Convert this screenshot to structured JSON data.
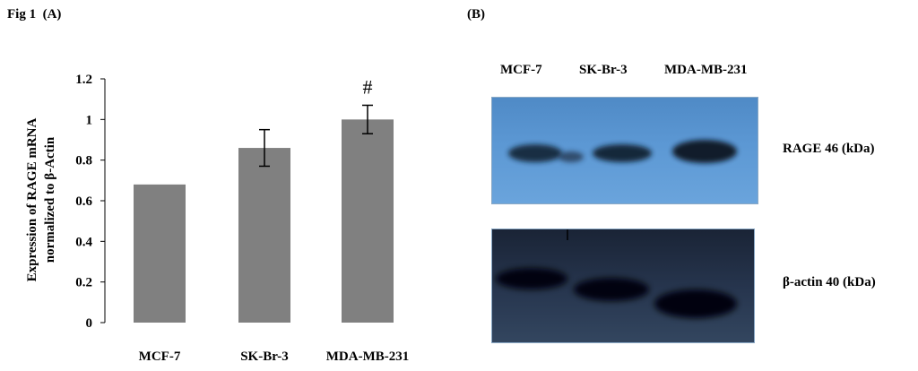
{
  "figure": {
    "title": "Fig 1  (A)",
    "panel_b_label": "(B)"
  },
  "chart_data": {
    "type": "bar",
    "categories": [
      "MCF-7",
      "SK-Br-3",
      "MDA-MB-231"
    ],
    "values": [
      0.68,
      0.86,
      1.0
    ],
    "errors": [
      0,
      0.09,
      0.07
    ],
    "annotations": [
      {
        "category": "MDA-MB-231",
        "text": "#"
      }
    ],
    "ylabel_line1": "Expression of RAGE mRNA",
    "ylabel_line2": "normalized to β-Actin",
    "ylim": [
      0,
      1.2
    ],
    "yticks": [
      "0",
      "0.2",
      "0.4",
      "0.6",
      "0.8",
      "1",
      "1.2"
    ],
    "bar_color": "#808080",
    "grid": false
  },
  "blot": {
    "lanes": [
      "MCF-7",
      "SK-Br-3",
      "MDA-MB-231"
    ],
    "rage_label": "RAGE 46 (kDa)",
    "actin_label": "β-actin 40 (kDa)",
    "rage_bg_color": "#5c98d4",
    "actin_bg_color": "#27364f"
  }
}
